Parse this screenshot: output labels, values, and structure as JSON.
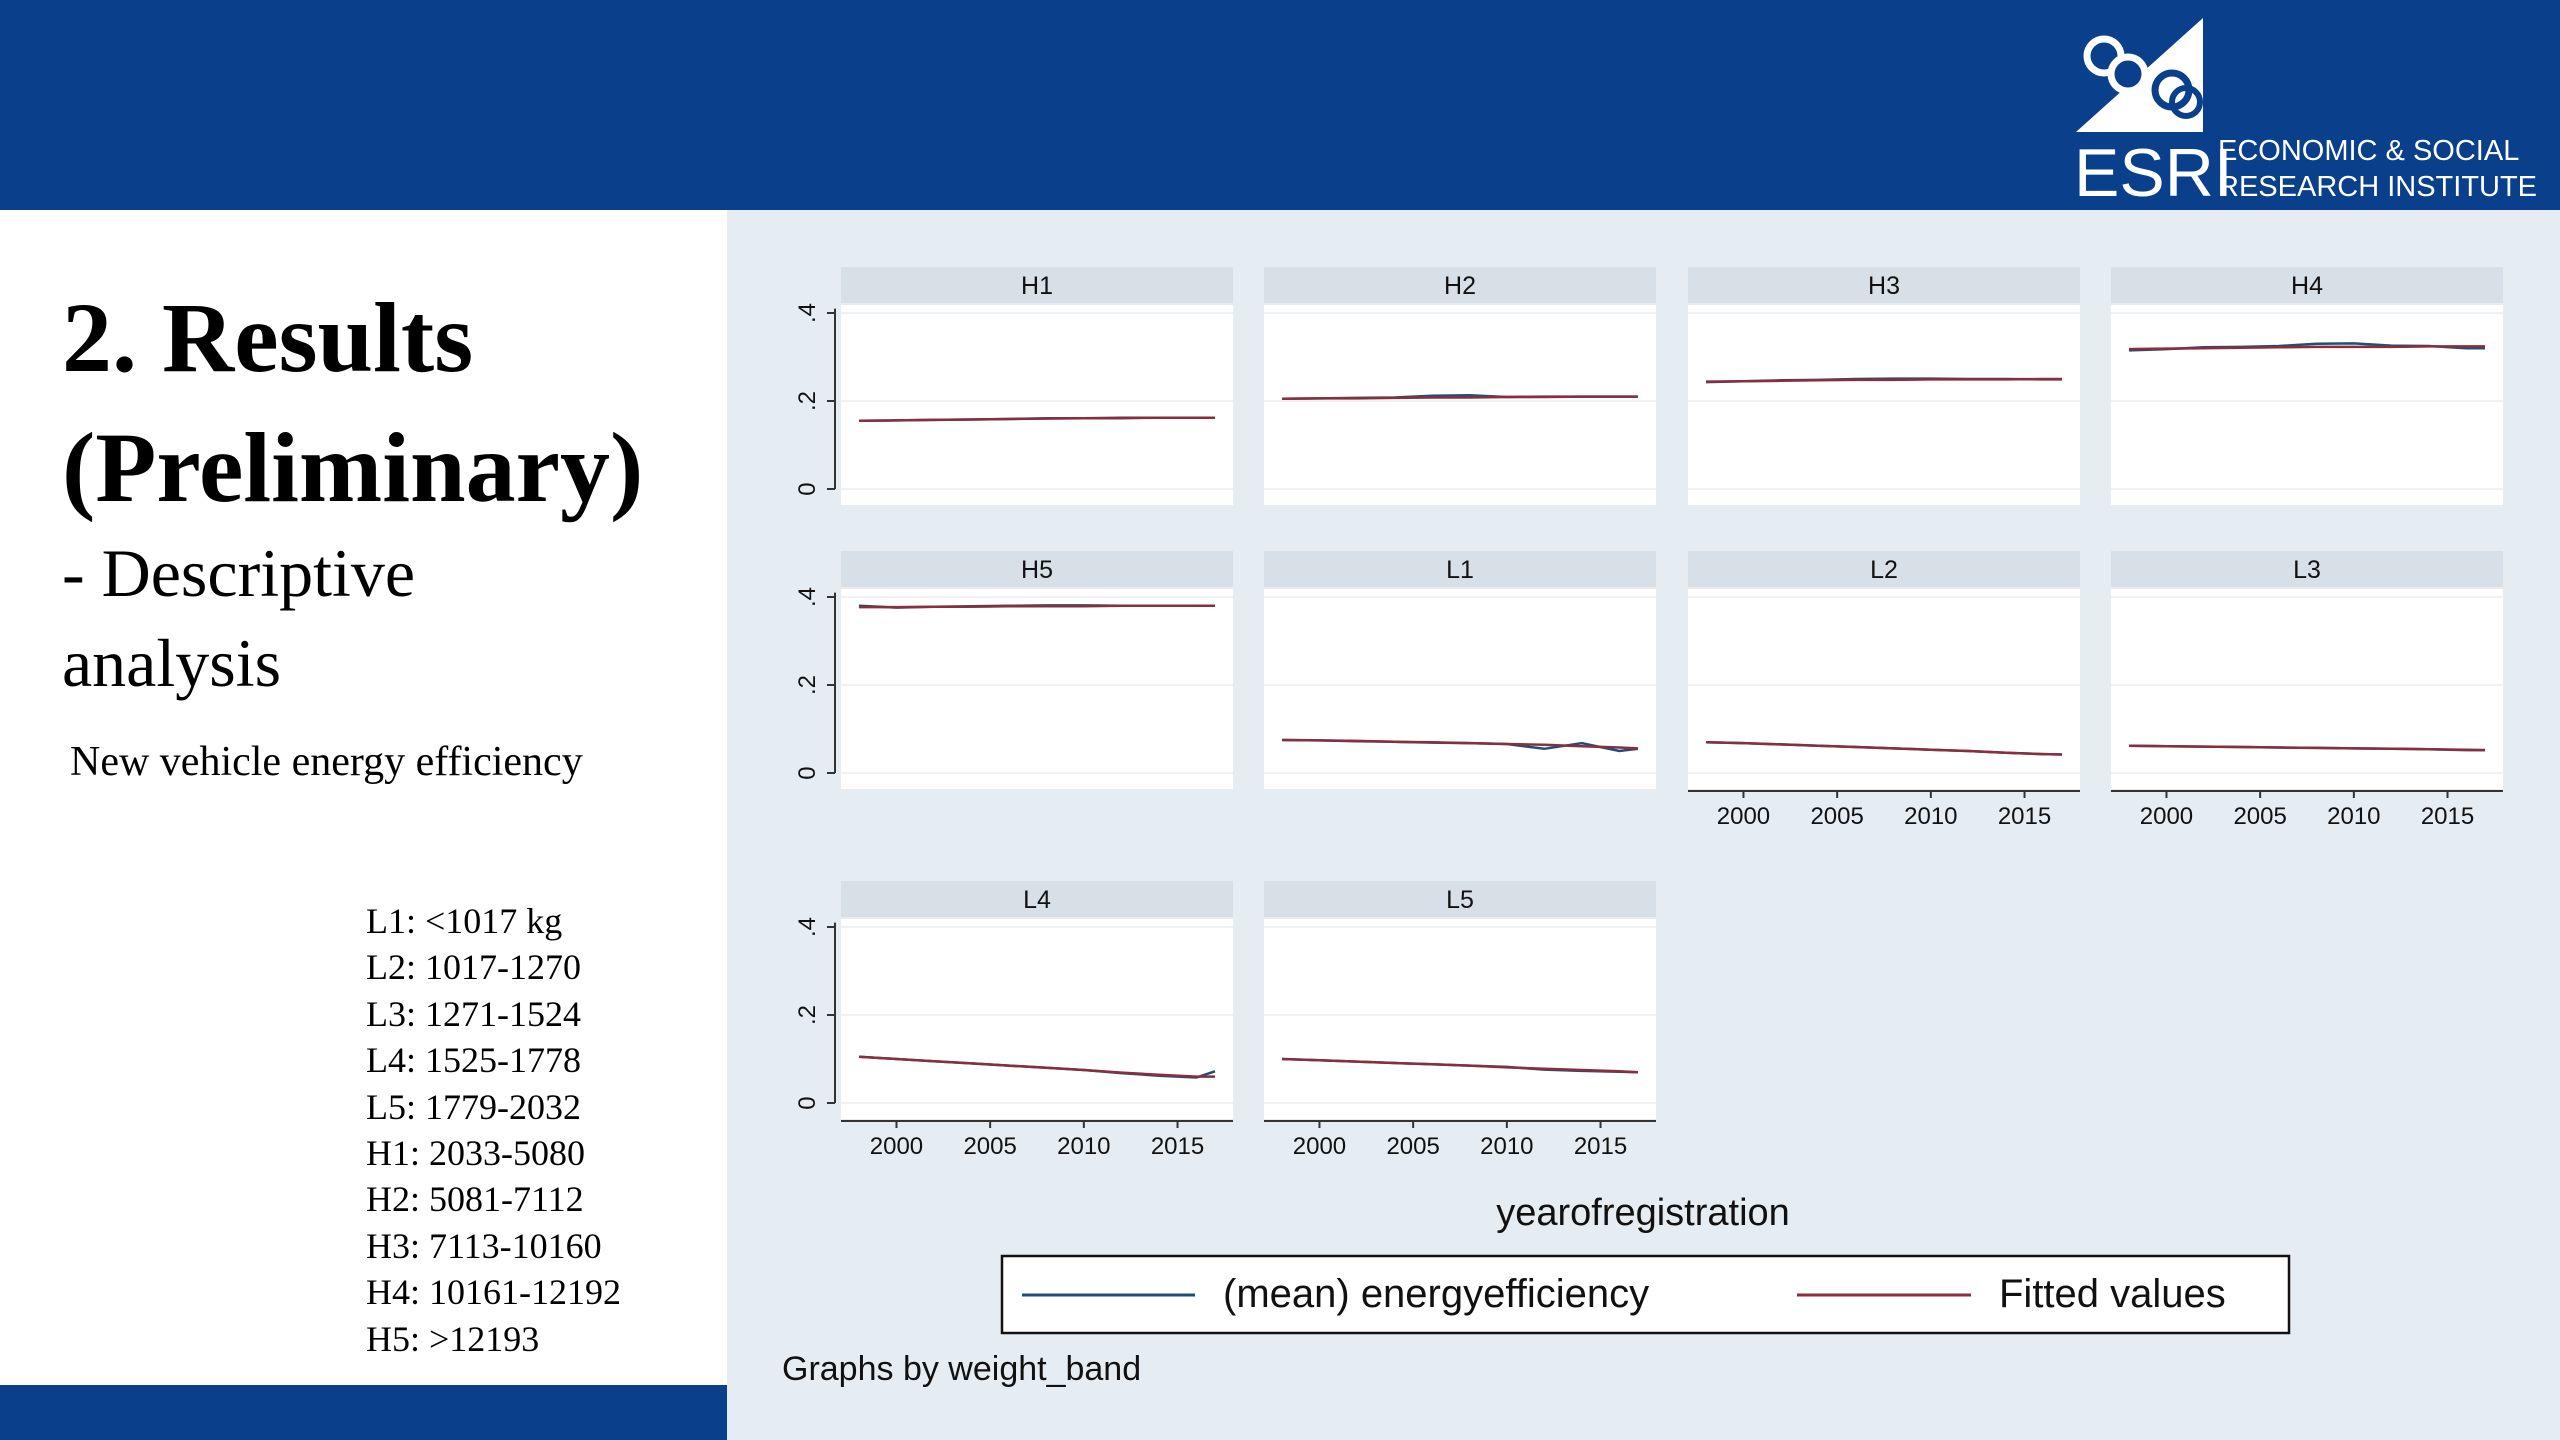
{
  "header": {
    "logo": {
      "word": "ESRI",
      "line1": "ECONOMIC & SOCIAL",
      "line2": "RESEARCH INSTITUTE"
    }
  },
  "slide": {
    "title_line1": "2. Results",
    "title_line2": "(Preliminary)",
    "subtitle_line1": "- Descriptive",
    "subtitle_line2": "analysis",
    "note": "New vehicle energy efficiency",
    "bands": [
      "L1: <1017 kg",
      "L2: 1017-1270",
      "L3: 1271-1524",
      "L4: 1525-1778",
      "L5: 1779-2032",
      "H1: 2033-5080",
      "H2: 5081-7112",
      "H3: 7113-10160",
      "H4: 10161-12192",
      "H5:  >12193"
    ]
  },
  "colors": {
    "brand_blue": "#0a3f8c",
    "chart_bg": "#e6edf2",
    "mean_series": "#1f4e79",
    "fitted_series": "#8b2e3c"
  },
  "chart_data": {
    "type": "line",
    "layout": "small multiples",
    "x": [
      1998,
      2000,
      2002,
      2004,
      2006,
      2008,
      2010,
      2012,
      2014,
      2016,
      2017
    ],
    "xlim": [
      1998,
      2017
    ],
    "xticks": [
      "2000",
      "2005",
      "2010",
      "2015"
    ],
    "ylim": [
      0,
      0.4
    ],
    "yticks": [
      "0",
      ".2",
      ".4"
    ],
    "xlabel": "yearofregistration",
    "note": "Graphs by weight_band",
    "legend": {
      "position": "bottom",
      "entries": [
        "(mean) energyefficiency",
        "Fitted values"
      ]
    },
    "panels": [
      {
        "name": "H1",
        "mean": [
          0.155,
          0.156,
          0.157,
          0.158,
          0.159,
          0.161,
          0.161,
          0.162,
          0.162,
          0.162,
          0.162
        ],
        "fitted": [
          0.155,
          0.156,
          0.157,
          0.158,
          0.159,
          0.16,
          0.161,
          0.161,
          0.162,
          0.162,
          0.162
        ]
      },
      {
        "name": "H2",
        "mean": [
          0.205,
          0.206,
          0.207,
          0.208,
          0.212,
          0.213,
          0.209,
          0.21,
          0.21,
          0.21,
          0.21
        ],
        "fitted": [
          0.205,
          0.206,
          0.206,
          0.207,
          0.208,
          0.208,
          0.209,
          0.209,
          0.21,
          0.21,
          0.21
        ]
      },
      {
        "name": "H3",
        "mean": [
          0.243,
          0.245,
          0.247,
          0.248,
          0.25,
          0.251,
          0.251,
          0.25,
          0.25,
          0.249,
          0.249
        ],
        "fitted": [
          0.244,
          0.245,
          0.246,
          0.247,
          0.248,
          0.248,
          0.249,
          0.249,
          0.249,
          0.25,
          0.25
        ]
      },
      {
        "name": "H4",
        "mean": [
          0.315,
          0.318,
          0.322,
          0.323,
          0.325,
          0.33,
          0.331,
          0.326,
          0.325,
          0.32,
          0.32
        ],
        "fitted": [
          0.318,
          0.319,
          0.32,
          0.321,
          0.322,
          0.323,
          0.323,
          0.323,
          0.324,
          0.324,
          0.324
        ]
      },
      {
        "name": "H5",
        "mean": [
          0.38,
          0.376,
          0.378,
          0.379,
          0.38,
          0.381,
          0.381,
          0.38,
          0.38,
          0.38,
          0.38
        ],
        "fitted": [
          0.377,
          0.377,
          0.378,
          0.378,
          0.379,
          0.379,
          0.379,
          0.38,
          0.38,
          0.38,
          0.38
        ]
      },
      {
        "name": "L1",
        "mean": [
          0.075,
          0.074,
          0.072,
          0.071,
          0.069,
          0.068,
          0.066,
          0.055,
          0.068,
          0.05,
          0.055
        ],
        "fitted": [
          0.075,
          0.074,
          0.073,
          0.071,
          0.07,
          0.068,
          0.066,
          0.064,
          0.061,
          0.058,
          0.056
        ]
      },
      {
        "name": "L2",
        "mean": [
          0.07,
          0.068,
          0.065,
          0.062,
          0.059,
          0.056,
          0.053,
          0.05,
          0.046,
          0.043,
          0.042
        ],
        "fitted": [
          0.07,
          0.068,
          0.065,
          0.062,
          0.059,
          0.056,
          0.053,
          0.05,
          0.046,
          0.043,
          0.042
        ]
      },
      {
        "name": "L3",
        "mean": [
          0.062,
          0.061,
          0.06,
          0.059,
          0.058,
          0.057,
          0.056,
          0.055,
          0.054,
          0.052,
          0.052
        ],
        "fitted": [
          0.062,
          0.061,
          0.06,
          0.059,
          0.058,
          0.057,
          0.056,
          0.055,
          0.054,
          0.053,
          0.052
        ]
      },
      {
        "name": "L4",
        "mean": [
          0.105,
          0.1,
          0.095,
          0.09,
          0.085,
          0.08,
          0.075,
          0.068,
          0.062,
          0.058,
          0.072
        ],
        "fitted": [
          0.105,
          0.1,
          0.095,
          0.09,
          0.085,
          0.08,
          0.075,
          0.069,
          0.064,
          0.06,
          0.06
        ]
      },
      {
        "name": "L5",
        "mean": [
          0.1,
          0.097,
          0.094,
          0.091,
          0.088,
          0.085,
          0.082,
          0.076,
          0.073,
          0.071,
          0.07
        ],
        "fitted": [
          0.1,
          0.097,
          0.094,
          0.091,
          0.088,
          0.085,
          0.081,
          0.078,
          0.075,
          0.072,
          0.07
        ]
      }
    ]
  }
}
